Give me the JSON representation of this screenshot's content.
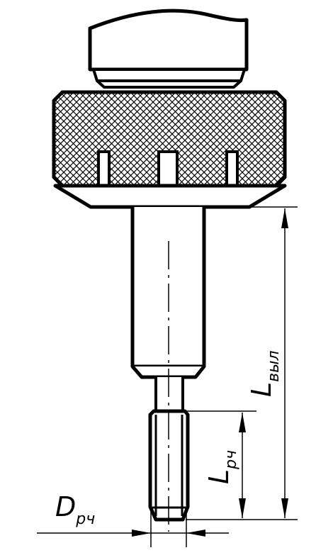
{
  "drawing": {
    "labels": {
      "d_rch": {
        "main": "D",
        "sub": "рч"
      },
      "l_rch": {
        "main": "L",
        "sub": "рч"
      },
      "l_vyl": {
        "main": "L",
        "sub": "выл"
      }
    },
    "line_color": "#000000",
    "background": "#ffffff"
  }
}
